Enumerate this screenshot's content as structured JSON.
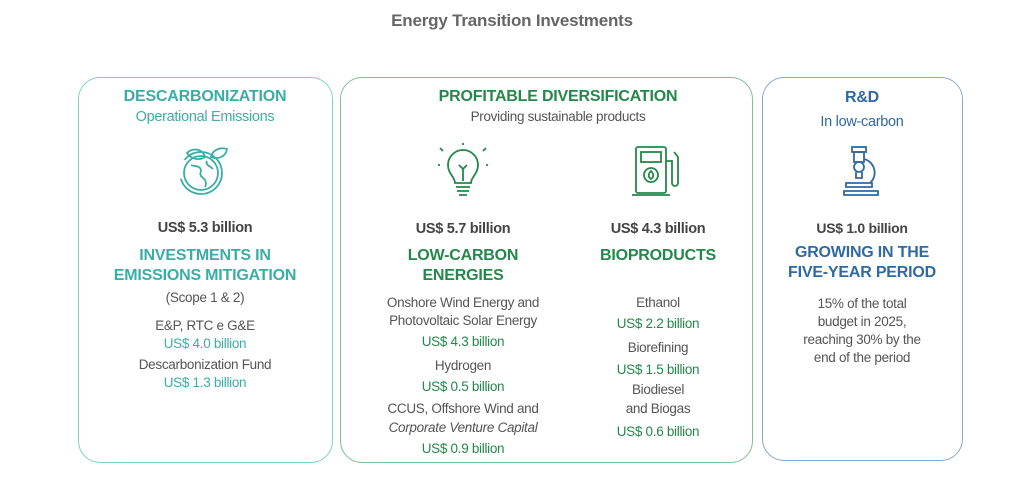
{
  "title": "Energy Transition Investments",
  "colors": {
    "teal": "#3aaea6",
    "green": "#23884a",
    "blue": "#2f6aa3"
  },
  "decarb": {
    "title": "DESCARBONIZATION",
    "subtitle": "Operational Emissions",
    "icon": "globe-leaves-icon",
    "amount": "US$ 5.3 billion",
    "heading1": "INVESTMENTS IN",
    "heading2": "EMISSIONS MITIGATION",
    "scope": "(Scope 1 & 2)",
    "items": [
      {
        "label": "E&P, RTC e G&E",
        "value": "US$ 4.0 billion"
      },
      {
        "label": "Descarbonization Fund",
        "value": "US$ 1.3 billion"
      }
    ]
  },
  "diversification": {
    "title": "PROFITABLE DIVERSIFICATION",
    "subtitle": "Providing sustainable products",
    "low_carbon": {
      "icon": "lightbulb-icon",
      "amount": "US$ 5.7 billion",
      "heading1": "LOW-CARBON",
      "heading2": "ENERGIES",
      "items": [
        {
          "label1": "Onshore Wind Energy and",
          "label2": "Photovoltaic Solar Energy",
          "value": "US$ 4.3 billion"
        },
        {
          "label1": "Hydrogen",
          "value": "US$ 0.5 billion"
        },
        {
          "label1": "CCUS, Offshore Wind and",
          "label2": "Corporate Venture Capital",
          "value": "US$ 0.9 billion"
        }
      ]
    },
    "bioproducts": {
      "icon": "fuel-pump-icon",
      "amount": "US$ 4.3 billion",
      "heading1": "BIOPRODUCTS",
      "items": [
        {
          "label1": "Ethanol",
          "value": "US$ 2.2 billion"
        },
        {
          "label1": "Biorefining",
          "value": "US$ 1.5 billion"
        },
        {
          "label1": "Biodiesel",
          "label2": "and Biogas",
          "value": "US$ 0.6 billion"
        }
      ]
    }
  },
  "rd": {
    "title": "R&D",
    "subtitle": "In low-carbon",
    "icon": "microscope-icon",
    "amount": "US$ 1.0 billion",
    "heading1": "GROWING IN THE",
    "heading2": "FIVE-YEAR PERIOD",
    "text": [
      "15% of the total",
      "budget in 2025,",
      "reaching 30% by the",
      "end of the period"
    ]
  }
}
